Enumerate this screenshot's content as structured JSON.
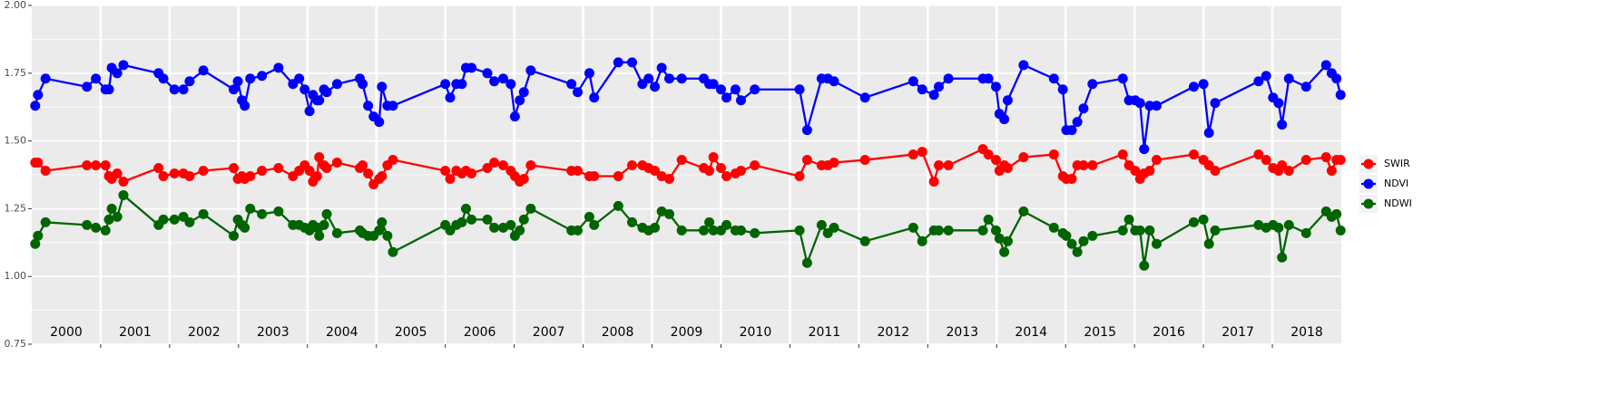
{
  "chart_data": {
    "type": "line",
    "x": [
      2000.05,
      2000.09,
      2000.2,
      2000.8,
      2000.93,
      2001.07,
      2001.12,
      2001.16,
      2001.24,
      2001.33,
      2001.84,
      2001.91,
      2002.07,
      2002.2,
      2002.29,
      2002.49,
      2002.93,
      2002.99,
      2003.05,
      2003.09,
      2003.17,
      2003.34,
      2003.58,
      2003.79,
      2003.88,
      2003.96,
      2004.03,
      2004.08,
      2004.14,
      2004.17,
      2004.24,
      2004.28,
      2004.43,
      2004.76,
      2004.8,
      2004.88,
      2004.96,
      2005.04,
      2005.08,
      2005.16,
      2005.24,
      2006.0,
      2006.07,
      2006.16,
      2006.24,
      2006.3,
      2006.38,
      2006.61,
      2006.71,
      2006.84,
      2006.95,
      2007.01,
      2007.08,
      2007.14,
      2007.24,
      2007.83,
      2007.92,
      2008.09,
      2008.16,
      2008.51,
      2008.71,
      2008.86,
      2008.95,
      2009.04,
      2009.14,
      2009.25,
      2009.43,
      2009.75,
      2009.83,
      2009.89,
      2010.0,
      2010.08,
      2010.21,
      2010.29,
      2010.49,
      2011.14,
      2011.25,
      2011.46,
      2011.55,
      2011.64,
      2012.09,
      2012.79,
      2012.92,
      2013.09,
      2013.16,
      2013.3,
      2013.8,
      2013.88,
      2013.99,
      2014.04,
      2014.11,
      2014.16,
      2014.39,
      2014.83,
      2014.96,
      2015.01,
      2015.09,
      2015.17,
      2015.26,
      2015.39,
      2015.83,
      2015.92,
      2016.01,
      2016.08,
      2016.14,
      2016.22,
      2016.32,
      2016.86,
      2017.0,
      2017.08,
      2017.17,
      2017.8,
      2017.91,
      2018.01,
      2018.09,
      2018.14,
      2018.24,
      2018.49,
      2018.78,
      2018.86,
      2018.93,
      2018.99
    ],
    "series": [
      {
        "name": "SWIR",
        "color": "#ff0000",
        "values": [
          1.42,
          1.42,
          1.39,
          1.41,
          1.41,
          1.41,
          1.37,
          1.36,
          1.38,
          1.35,
          1.4,
          1.37,
          1.38,
          1.38,
          1.37,
          1.39,
          1.4,
          1.36,
          1.37,
          1.36,
          1.37,
          1.39,
          1.4,
          1.37,
          1.39,
          1.41,
          1.39,
          1.35,
          1.37,
          1.44,
          1.41,
          1.4,
          1.42,
          1.4,
          1.41,
          1.38,
          1.34,
          1.36,
          1.37,
          1.41,
          1.43,
          1.39,
          1.36,
          1.39,
          1.38,
          1.39,
          1.38,
          1.4,
          1.42,
          1.41,
          1.39,
          1.37,
          1.35,
          1.36,
          1.41,
          1.39,
          1.39,
          1.37,
          1.37,
          1.37,
          1.41,
          1.41,
          1.4,
          1.39,
          1.37,
          1.36,
          1.43,
          1.4,
          1.39,
          1.44,
          1.4,
          1.37,
          1.38,
          1.39,
          1.41,
          1.37,
          1.43,
          1.41,
          1.41,
          1.42,
          1.43,
          1.45,
          1.46,
          1.35,
          1.41,
          1.41,
          1.47,
          1.45,
          1.43,
          1.39,
          1.41,
          1.4,
          1.44,
          1.45,
          1.37,
          1.36,
          1.36,
          1.41,
          1.41,
          1.41,
          1.45,
          1.41,
          1.39,
          1.36,
          1.38,
          1.39,
          1.43,
          1.45,
          1.43,
          1.41,
          1.39,
          1.45,
          1.43,
          1.4,
          1.39,
          1.41,
          1.39,
          1.43,
          1.44,
          1.39,
          1.43,
          1.43
        ]
      },
      {
        "name": "NDVI",
        "color": "#0000ff",
        "values": [
          1.63,
          1.67,
          1.73,
          1.7,
          1.73,
          1.69,
          1.69,
          1.77,
          1.75,
          1.78,
          1.75,
          1.73,
          1.69,
          1.69,
          1.72,
          1.76,
          1.69,
          1.72,
          1.65,
          1.63,
          1.73,
          1.74,
          1.77,
          1.71,
          1.73,
          1.69,
          1.61,
          1.67,
          1.65,
          1.65,
          1.69,
          1.68,
          1.71,
          1.73,
          1.71,
          1.63,
          1.59,
          1.57,
          1.7,
          1.63,
          1.63,
          1.71,
          1.66,
          1.71,
          1.71,
          1.77,
          1.77,
          1.75,
          1.72,
          1.73,
          1.71,
          1.59,
          1.65,
          1.68,
          1.76,
          1.71,
          1.68,
          1.75,
          1.66,
          1.79,
          1.79,
          1.71,
          1.73,
          1.7,
          1.77,
          1.73,
          1.73,
          1.73,
          1.71,
          1.71,
          1.69,
          1.66,
          1.69,
          1.65,
          1.69,
          1.69,
          1.54,
          1.73,
          1.73,
          1.72,
          1.66,
          1.72,
          1.69,
          1.67,
          1.7,
          1.73,
          1.73,
          1.73,
          1.7,
          1.6,
          1.58,
          1.65,
          1.78,
          1.73,
          1.69,
          1.54,
          1.54,
          1.57,
          1.62,
          1.71,
          1.73,
          1.65,
          1.65,
          1.64,
          1.47,
          1.63,
          1.63,
          1.7,
          1.71,
          1.53,
          1.64,
          1.72,
          1.74,
          1.66,
          1.64,
          1.56,
          1.73,
          1.7,
          1.78,
          1.75,
          1.73,
          1.67
        ]
      },
      {
        "name": "NDWI",
        "color": "#006400",
        "values": [
          1.12,
          1.15,
          1.2,
          1.19,
          1.18,
          1.17,
          1.21,
          1.25,
          1.22,
          1.3,
          1.19,
          1.21,
          1.21,
          1.22,
          1.2,
          1.23,
          1.15,
          1.21,
          1.19,
          1.18,
          1.25,
          1.23,
          1.24,
          1.19,
          1.19,
          1.18,
          1.17,
          1.19,
          1.18,
          1.15,
          1.19,
          1.23,
          1.16,
          1.17,
          1.16,
          1.15,
          1.15,
          1.17,
          1.2,
          1.15,
          1.09,
          1.19,
          1.17,
          1.19,
          1.2,
          1.25,
          1.21,
          1.21,
          1.18,
          1.18,
          1.19,
          1.15,
          1.17,
          1.21,
          1.25,
          1.17,
          1.17,
          1.22,
          1.19,
          1.26,
          1.2,
          1.18,
          1.17,
          1.18,
          1.24,
          1.23,
          1.17,
          1.17,
          1.2,
          1.17,
          1.17,
          1.19,
          1.17,
          1.17,
          1.16,
          1.17,
          1.05,
          1.19,
          1.16,
          1.18,
          1.13,
          1.18,
          1.13,
          1.17,
          1.17,
          1.17,
          1.17,
          1.21,
          1.17,
          1.14,
          1.09,
          1.13,
          1.24,
          1.18,
          1.16,
          1.15,
          1.12,
          1.09,
          1.13,
          1.15,
          1.17,
          1.21,
          1.17,
          1.17,
          1.04,
          1.17,
          1.12,
          1.2,
          1.21,
          1.12,
          1.17,
          1.19,
          1.18,
          1.19,
          1.18,
          1.07,
          1.19,
          1.16,
          1.24,
          1.22,
          1.23,
          1.17
        ]
      }
    ],
    "year_labels": [
      "2000",
      "2001",
      "2002",
      "2003",
      "2004",
      "2005",
      "2006",
      "2007",
      "2008",
      "2009",
      "2010",
      "2011",
      "2012",
      "2013",
      "2014",
      "2015",
      "2016",
      "2017",
      "2018"
    ],
    "xlim": [
      2000,
      2019
    ],
    "xticks": [
      2001,
      2002,
      2003,
      2004,
      2005,
      2006,
      2007,
      2008,
      2009,
      2010,
      2011,
      2012,
      2013,
      2014,
      2015,
      2016,
      2017,
      2018
    ],
    "ylim": [
      0.75,
      2.0
    ],
    "yticks": [
      {
        "value": 0.75,
        "label": "0.75"
      },
      {
        "value": 1.0,
        "label": "1.00"
      },
      {
        "value": 1.25,
        "label": "1.25"
      },
      {
        "value": 1.5,
        "label": "1.50"
      },
      {
        "value": 1.75,
        "label": "1.75"
      },
      {
        "value": 2.0,
        "label": "2.00"
      }
    ],
    "grid": true,
    "legend": "right"
  }
}
